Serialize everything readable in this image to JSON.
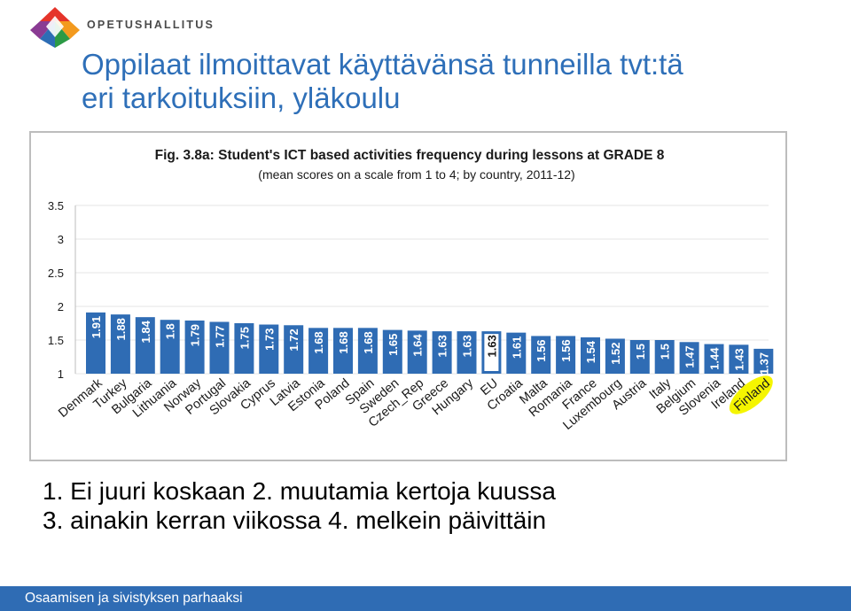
{
  "header": {
    "org_name": "OPETUSHALLITUS",
    "title_line1": "Oppilaat ilmoittavat käyttävänsä tunneilla tvt:tä",
    "title_line2": "eri tarkoituksiin, yläkoulu"
  },
  "colors": {
    "title": "#2e6fb8",
    "bar": "#2f6cb4",
    "footer": "#2f6cb4",
    "highlight": "#f5f500",
    "logo": [
      "#e5342a",
      "#f39a1e",
      "#2c9a45",
      "#2d6db5",
      "#8a3b93"
    ]
  },
  "chart_data": {
    "type": "bar",
    "title": "Fig. 3.8a: Student's ICT based activities frequency during lessons at GRADE 8",
    "subtitle": "(mean scores on a scale from 1 to 4; by country, 2011-12)",
    "xlabel": "",
    "ylabel": "",
    "ylim": [
      1,
      3.5
    ],
    "y_ticks": [
      "1",
      "1.5",
      "2",
      "2.5",
      "3",
      "3.5"
    ],
    "grid": true,
    "categories": [
      "Denmark",
      "Turkey",
      "Bulgaria",
      "Lithuania",
      "Norway",
      "Portugal",
      "Slovakia",
      "Cyprus",
      "Latvia",
      "Estonia",
      "Poland",
      "Spain",
      "Sweden",
      "Czech_Rep",
      "Greece",
      "Hungary",
      "EU",
      "Croatia",
      "Malta",
      "Romania",
      "France",
      "Luxembourg",
      "Austria",
      "Italy",
      "Belgium",
      "Slovenia",
      "Ireland",
      "Finland"
    ],
    "values": [
      1.91,
      1.88,
      1.84,
      1.8,
      1.79,
      1.77,
      1.75,
      1.73,
      1.72,
      1.68,
      1.68,
      1.68,
      1.65,
      1.64,
      1.63,
      1.63,
      1.63,
      1.61,
      1.56,
      1.56,
      1.54,
      1.52,
      1.5,
      1.5,
      1.47,
      1.44,
      1.43,
      1.37
    ],
    "value_labels": [
      "1.91",
      "1.88",
      "1.84",
      "1.8",
      "1.79",
      "1.77",
      "1.75",
      "1.73",
      "1.72",
      "1.68",
      "1.68",
      "1.68",
      "1.65",
      "1.64",
      "1.63",
      "1.63",
      "1.63",
      "1.61",
      "1.56",
      "1.56",
      "1.54",
      "1.52",
      "1.5",
      "1.5",
      "1.47",
      "1.44",
      "1.43",
      "1.37"
    ],
    "highlighted_bar": "EU",
    "highlighted_label": "Finland"
  },
  "legend": {
    "line1": "1.   Ei juuri koskaan 2. muutamia kertoja kuussa",
    "line2": "3. ainakin kerran viikossa 4. melkein päivittäin"
  },
  "footer": {
    "text": "Osaamisen ja sivistyksen parhaaksi"
  }
}
